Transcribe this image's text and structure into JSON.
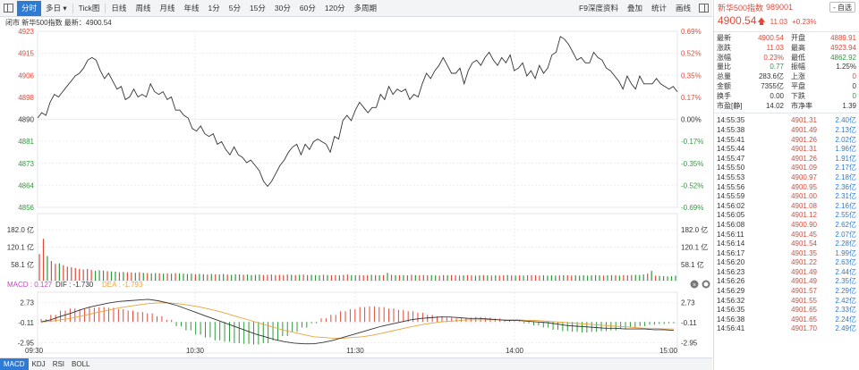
{
  "toolbar": {
    "tabs": [
      "分时",
      "多日 ▾",
      "Tick图",
      "日线",
      "周线",
      "月线",
      "年线",
      "1分",
      "5分",
      "15分",
      "30分",
      "60分",
      "120分",
      "多周期"
    ],
    "right_buttons": [
      "F9深度资料",
      "叠加",
      "统计",
      "画线"
    ]
  },
  "info_line": "闭市  新华500指数  最新：4900.54",
  "chart_data": [
    {
      "type": "line",
      "title": "新华500指数",
      "x_ticks": [
        "09:30",
        "10:30",
        "11:30",
        "14:00",
        "15:00"
      ],
      "y_ticks_left": [
        "4923",
        "4915",
        "4906",
        "4898",
        "4890",
        "4881",
        "4873",
        "4864",
        "4856"
      ],
      "y_ticks_right": [
        "0.69%",
        "0.52%",
        "0.35%",
        "0.17%",
        "0.00%",
        "-0.17%",
        "-0.35%",
        "-0.52%",
        "-0.69%"
      ],
      "ylim": [
        4856,
        4923
      ],
      "prev_close": 4889.51,
      "series": [
        {
          "values": [
            4890,
            4892,
            4891,
            4896,
            4899,
            4898,
            4900,
            4902,
            4904,
            4906,
            4907,
            4909,
            4912,
            4913,
            4912,
            4908,
            4905,
            4907,
            4904,
            4901,
            4902,
            4897,
            4898,
            4901,
            4898,
            4899,
            4898,
            4903,
            4900,
            4899,
            4900,
            4897,
            4898,
            4893,
            4893,
            4891,
            4890,
            4886,
            4885,
            4887,
            4884,
            4883,
            4884,
            4880,
            4881,
            4878,
            4876,
            4879,
            4876,
            4875,
            4873,
            4874,
            4872,
            4870,
            4866,
            4864,
            4866,
            4869,
            4872,
            4874,
            4877,
            4879,
            4880,
            4876,
            4880,
            4878,
            4881,
            4882,
            4881,
            4880,
            4877,
            4883,
            4882,
            4889,
            4891,
            4889,
            4893,
            4896,
            4894,
            4892,
            4894,
            4894,
            4899,
            4897,
            4902,
            4899,
            4901,
            4900,
            4901,
            4897,
            4899,
            4898,
            4903,
            4907,
            4905,
            4908,
            4910,
            4913,
            4910,
            4907,
            4907,
            4909,
            4903,
            4908,
            4911,
            4912,
            4910,
            4913,
            4915,
            4912,
            4910,
            4913,
            4911,
            4914,
            4908,
            4909,
            4911,
            4906,
            4908,
            4905,
            4910,
            4907,
            4909,
            4914,
            4915,
            4921,
            4920,
            4918,
            4915,
            4912,
            4913,
            4911,
            4911,
            4915,
            4913,
            4912,
            4909,
            4908,
            4906,
            4904,
            4901,
            4906,
            4903,
            4901,
            4906,
            4903,
            4903,
            4903,
            4905,
            4903,
            4902,
            4901,
            4902,
            4900
          ]
        }
      ]
    },
    {
      "type": "bar",
      "title": "成交量",
      "y_ticks": [
        "182.0 亿",
        "120.1 亿",
        "58.1 亿"
      ],
      "ylim": [
        0,
        240
      ],
      "values": [
        95,
        150,
        88,
        70,
        60,
        62,
        55,
        50,
        48,
        45,
        42,
        40,
        42,
        38,
        35,
        37,
        36,
        34,
        33,
        32,
        30,
        31,
        30,
        29,
        28,
        30,
        28,
        27,
        26,
        27,
        26,
        25,
        26,
        25,
        27,
        26,
        25,
        24,
        25,
        23,
        24,
        23,
        22,
        24,
        23,
        22,
        24,
        22,
        21,
        23,
        22,
        21,
        22,
        20,
        21,
        22,
        20,
        21,
        22,
        20,
        21,
        20,
        22,
        21,
        20,
        21,
        22,
        20,
        21,
        20,
        19,
        21,
        20,
        19,
        20,
        19,
        21,
        22,
        20,
        19,
        20,
        19,
        20,
        21,
        20,
        19,
        20,
        28,
        21,
        20,
        19,
        20,
        19,
        21,
        20,
        19,
        20,
        19,
        20,
        19,
        18,
        20,
        19,
        20,
        19,
        18,
        19,
        20,
        19,
        18,
        19,
        20,
        19,
        18,
        19,
        18,
        19,
        20,
        19,
        18,
        19,
        18,
        19,
        20,
        19,
        18,
        19,
        18,
        19,
        18,
        19,
        20,
        19,
        18,
        19,
        18,
        19,
        18,
        19,
        20,
        19,
        18,
        19,
        20,
        19,
        18,
        20,
        19,
        20,
        21,
        20,
        22,
        25,
        35,
        18,
        17,
        16,
        15,
        16,
        18
      ]
    },
    {
      "type": "line",
      "title": "MACD",
      "y_ticks": [
        "2.73",
        "-0.11",
        "-2.95"
      ],
      "ylim": [
        -4.4,
        4.2
      ],
      "dif": [
        0.0,
        0.3,
        0.8,
        1.2,
        1.7,
        2.1,
        2.4,
        2.7,
        2.9,
        3.0,
        3.1,
        3.2,
        3.0,
        2.7,
        2.3,
        1.8,
        1.3,
        0.8,
        0.3,
        -0.2,
        -0.7,
        -1.2,
        -1.7,
        -2.1,
        -2.5,
        -2.8,
        -3.0,
        -3.1,
        -3.1,
        -2.9,
        -2.6,
        -2.2,
        -1.8,
        -1.4,
        -1.0,
        -0.6,
        -0.3,
        0.0,
        0.3,
        0.5,
        0.6,
        0.7,
        0.7,
        0.6,
        0.5,
        0.5,
        0.4,
        0.3,
        0.2,
        0.2,
        0.1,
        0.0,
        -0.1,
        -0.3,
        -0.5,
        -0.6,
        -0.7,
        -0.8,
        -0.9,
        -0.9,
        -1.0,
        -1.0,
        -1.0,
        -1.1,
        -1.1,
        -1.2
      ],
      "dea": [
        0.0,
        0.1,
        0.3,
        0.5,
        0.8,
        1.1,
        1.4,
        1.7,
        2.0,
        2.2,
        2.4,
        2.6,
        2.7,
        2.7,
        2.6,
        2.4,
        2.2,
        1.9,
        1.6,
        1.2,
        0.8,
        0.4,
        0.0,
        -0.4,
        -0.8,
        -1.2,
        -1.5,
        -1.8,
        -2.1,
        -2.2,
        -2.3,
        -2.3,
        -2.2,
        -2.1,
        -1.9,
        -1.6,
        -1.3,
        -1.0,
        -0.7,
        -0.4,
        -0.2,
        0.0,
        0.1,
        0.2,
        0.3,
        0.3,
        0.3,
        0.3,
        0.3,
        0.3,
        0.2,
        0.2,
        0.1,
        0.0,
        -0.1,
        -0.2,
        -0.3,
        -0.4,
        -0.5,
        -0.6,
        -0.7,
        -0.8,
        -0.9,
        -0.9,
        -1.0,
        -1.0
      ],
      "hist": [
        0.4,
        1.0,
        1.6,
        1.9,
        1.8,
        2.0,
        2.1,
        2.0,
        1.8,
        1.6,
        1.4,
        1.2,
        0.8,
        0.3,
        -0.6,
        -1.2,
        -1.8,
        -2.2,
        -2.6,
        -2.8,
        -3.0,
        -3.1,
        -3.2,
        -3.0,
        -2.6,
        -2.0,
        -1.4,
        -0.8,
        -0.2,
        0.5,
        1.0,
        1.5,
        1.8,
        2.1,
        2.2,
        2.1,
        1.9,
        1.7,
        1.5,
        1.3,
        1.0,
        0.8,
        0.6,
        0.5,
        0.6,
        0.7,
        0.6,
        0.5,
        0.3,
        0.1,
        -0.2,
        -0.5,
        -0.8,
        -1.1,
        -1.3,
        -1.4,
        -1.5,
        -1.4,
        -1.3,
        -1.2,
        -1.0,
        -0.8,
        -0.6,
        -0.4,
        -0.3,
        -0.2
      ]
    }
  ],
  "macd_label": {
    "macd": "MACD : 0.127",
    "dif": "DIF : -1.730",
    "dea": "DEA : -1.793"
  },
  "colors": {
    "up": "#e04a3a",
    "down": "#2e9a3c",
    "line": "#333333",
    "dea": "#e8a33a",
    "accent": "#2e7bd6"
  },
  "indicator_tabs": [
    "MACD",
    "KDJ",
    "RSI",
    "BOLL"
  ],
  "quote": {
    "name": "新华500指数",
    "code": "989001",
    "self_select": "- 自选",
    "price": "4900.54",
    "change": "11.03",
    "change_pct": "+0.23%",
    "stats": [
      {
        "l1": "最新",
        "v1": "4900.54",
        "c1": "red",
        "l2": "开盘",
        "v2": "4889.91",
        "c2": "red"
      },
      {
        "l1": "涨跌",
        "v1": "11.03",
        "c1": "red",
        "l2": "最高",
        "v2": "4923.94",
        "c2": "red"
      },
      {
        "l1": "涨幅",
        "v1": "0.23%",
        "c1": "red",
        "l2": "最低",
        "v2": "4862.92",
        "c2": "green"
      },
      {
        "l1": "量比",
        "v1": "0.77",
        "c1": "green",
        "l2": "振幅",
        "v2": "1.25%",
        "c2": "dark"
      },
      {
        "l1": "总量",
        "v1": "283.6亿",
        "c1": "dark",
        "l2": "上涨",
        "v2": "0",
        "c2": "red"
      },
      {
        "l1": "金额",
        "v1": "7355亿",
        "c1": "dark",
        "l2": "平盘",
        "v2": "0",
        "c2": "dark"
      },
      {
        "l1": "换手",
        "v1": "0.00",
        "c1": "dark",
        "l2": "下跌",
        "v2": "0",
        "c2": "green"
      },
      {
        "l1": "市盈[静]",
        "v1": "14.02",
        "c1": "dark",
        "l2": "市净率",
        "v2": "1.39",
        "c2": "dark"
      }
    ],
    "ticks": [
      {
        "t": "14:55:35",
        "p": "4901.31",
        "v": "2.40亿"
      },
      {
        "t": "14:55:38",
        "p": "4901.49",
        "v": "2.13亿"
      },
      {
        "t": "14:55:41",
        "p": "4901.26",
        "v": "2.02亿"
      },
      {
        "t": "14:55:44",
        "p": "4901.31",
        "v": "1.96亿"
      },
      {
        "t": "14:55:47",
        "p": "4901.26",
        "v": "1.91亿"
      },
      {
        "t": "14:55:50",
        "p": "4901.09",
        "v": "2.17亿"
      },
      {
        "t": "14:55:53",
        "p": "4900.97",
        "v": "2.18亿"
      },
      {
        "t": "14:55:56",
        "p": "4900.95",
        "v": "2.36亿"
      },
      {
        "t": "14:55:59",
        "p": "4901.00",
        "v": "2.31亿"
      },
      {
        "t": "14:56:02",
        "p": "4901.08",
        "v": "2.16亿"
      },
      {
        "t": "14:56:05",
        "p": "4901.12",
        "v": "2.55亿"
      },
      {
        "t": "14:56:08",
        "p": "4900.90",
        "v": "2.62亿"
      },
      {
        "t": "14:56:11",
        "p": "4901.45",
        "v": "2.07亿"
      },
      {
        "t": "14:56:14",
        "p": "4901.54",
        "v": "2.28亿"
      },
      {
        "t": "14:56:17",
        "p": "4901.35",
        "v": "1.99亿"
      },
      {
        "t": "14:56:20",
        "p": "4901.22",
        "v": "2.63亿"
      },
      {
        "t": "14:56:23",
        "p": "4901.49",
        "v": "2.44亿"
      },
      {
        "t": "14:56:26",
        "p": "4901.49",
        "v": "2.35亿"
      },
      {
        "t": "14:56:29",
        "p": "4901.57",
        "v": "2.29亿"
      },
      {
        "t": "14:56:32",
        "p": "4901.55",
        "v": "2.42亿"
      },
      {
        "t": "14:56:35",
        "p": "4901.65",
        "v": "2.33亿"
      },
      {
        "t": "14:56:38",
        "p": "4901.65",
        "v": "2.24亿"
      },
      {
        "t": "14:56:41",
        "p": "4901.70",
        "v": "2.49亿"
      }
    ]
  }
}
